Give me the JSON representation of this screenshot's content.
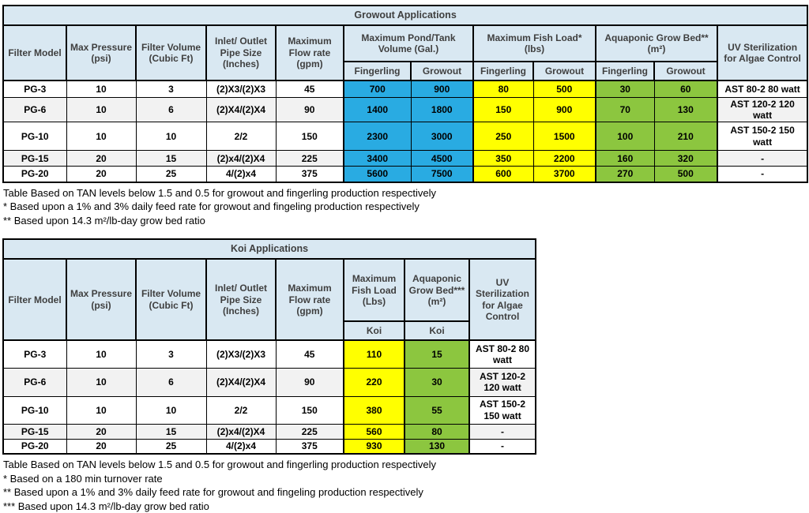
{
  "colors": {
    "header_bg": "#D9E8F2",
    "header_text": "#3F3F3F",
    "pond_blue": "#29ABE2",
    "fish_yellow": "#FFFF00",
    "bed_green": "#8CC63F",
    "band_gray": "#F2F2F2",
    "border": "#000000"
  },
  "growout_table": {
    "title": "Growout Applications",
    "headers": {
      "filter_model": "Filter Model",
      "max_pressure": "Max Pressure (psi)",
      "filter_volume": "Filter Volume (Cubic Ft)",
      "pipe_size": "Inlet/ Outlet Pipe Size (Inches)",
      "max_flow": "Maximum Flow rate (gpm)",
      "pond_group": "Maximum Pond/Tank Volume (Gal.)",
      "fish_group": "Maximum Fish Load* (lbs)",
      "bed_group": "Aquaponic Grow Bed** (m²)",
      "uv": "UV Sterilization for Algae Control",
      "fingerling": "Fingerling",
      "growout": "Growout"
    },
    "rows": [
      {
        "model": "PG-3",
        "max_pressure": "10",
        "filter_volume": "3",
        "pipe_size": "(2)X3/(2)X3",
        "max_flow": "45",
        "pond_fingerling": "700",
        "pond_growout": "900",
        "fish_fingerling": "80",
        "fish_growout": "500",
        "bed_fingerling": "30",
        "bed_growout": "60",
        "uv": "AST 80-2 80 watt"
      },
      {
        "model": "PG-6",
        "max_pressure": "10",
        "filter_volume": "6",
        "pipe_size": "(2)X4/(2)X4",
        "max_flow": "90",
        "pond_fingerling": "1400",
        "pond_growout": "1800",
        "fish_fingerling": "150",
        "fish_growout": "900",
        "bed_fingerling": "70",
        "bed_growout": "130",
        "uv": "AST 120-2 120 watt"
      },
      {
        "model": "PG-10",
        "max_pressure": "10",
        "filter_volume": "10",
        "pipe_size": "2/2",
        "max_flow": "150",
        "pond_fingerling": "2300",
        "pond_growout": "3000",
        "fish_fingerling": "250",
        "fish_growout": "1500",
        "bed_fingerling": "100",
        "bed_growout": "210",
        "uv": "AST 150-2 150 watt"
      },
      {
        "model": "PG-15",
        "max_pressure": "20",
        "filter_volume": "15",
        "pipe_size": "(2)x4/(2)X4",
        "max_flow": "225",
        "pond_fingerling": "3400",
        "pond_growout": "4500",
        "fish_fingerling": "350",
        "fish_growout": "2200",
        "bed_fingerling": "160",
        "bed_growout": "320",
        "uv": "-"
      },
      {
        "model": "PG-20",
        "max_pressure": "20",
        "filter_volume": "25",
        "pipe_size": "4/(2)x4",
        "max_flow": "375",
        "pond_fingerling": "5600",
        "pond_growout": "7500",
        "fish_fingerling": "600",
        "fish_growout": "3700",
        "bed_fingerling": "270",
        "bed_growout": "500",
        "uv": "-"
      }
    ],
    "footnotes": [
      "Table Based on TAN levels below 1.5 and 0.5 for growout and fingerling production respectively",
      "* Based upon a 1% and 3% daily feed rate for growout and fingeling production respectively",
      "** Based upon 14.3 m²/lb-day grow bed ratio"
    ]
  },
  "koi_table": {
    "title": "Koi Applications",
    "headers": {
      "filter_model": "Filter Model",
      "max_pressure": "Max Pressure (psi)",
      "filter_volume": "Filter Volume (Cubic Ft)",
      "pipe_size": "Inlet/ Outlet Pipe Size (Inches)",
      "max_flow": "Maximum Flow rate (gpm)",
      "fish_group": "Maximum Fish Load (Lbs)",
      "bed_group": "Aquaponic Grow Bed*** (m²)",
      "uv": "UV Sterilization for Algae Control",
      "koi": "Koi"
    },
    "rows": [
      {
        "model": "PG-3",
        "max_pressure": "10",
        "filter_volume": "3",
        "pipe_size": "(2)X3/(2)X3",
        "max_flow": "45",
        "fish_load": "110",
        "grow_bed": "15",
        "uv": "AST 80-2 80 watt"
      },
      {
        "model": "PG-6",
        "max_pressure": "10",
        "filter_volume": "6",
        "pipe_size": "(2)X4/(2)X4",
        "max_flow": "90",
        "fish_load": "220",
        "grow_bed": "30",
        "uv": "AST 120-2 120 watt"
      },
      {
        "model": "PG-10",
        "max_pressure": "10",
        "filter_volume": "10",
        "pipe_size": "2/2",
        "max_flow": "150",
        "fish_load": "380",
        "grow_bed": "55",
        "uv": "AST 150-2 150 watt"
      },
      {
        "model": "PG-15",
        "max_pressure": "20",
        "filter_volume": "15",
        "pipe_size": "(2)x4/(2)X4",
        "max_flow": "225",
        "fish_load": "560",
        "grow_bed": "80",
        "uv": "-"
      },
      {
        "model": "PG-20",
        "max_pressure": "20",
        "filter_volume": "25",
        "pipe_size": "4/(2)x4",
        "max_flow": "375",
        "fish_load": "930",
        "grow_bed": "130",
        "uv": "-"
      }
    ],
    "footnotes": [
      "Table Based on TAN levels below 1.5 and 0.5 for growout and fingerling production respectively",
      "* Based on a 180 min turnover rate",
      "** Based upon a 1% and 3% daily feed rate for growout and fingeling production respectively",
      "*** Based upon 14.3 m²/lb-day grow bed ratio"
    ]
  }
}
